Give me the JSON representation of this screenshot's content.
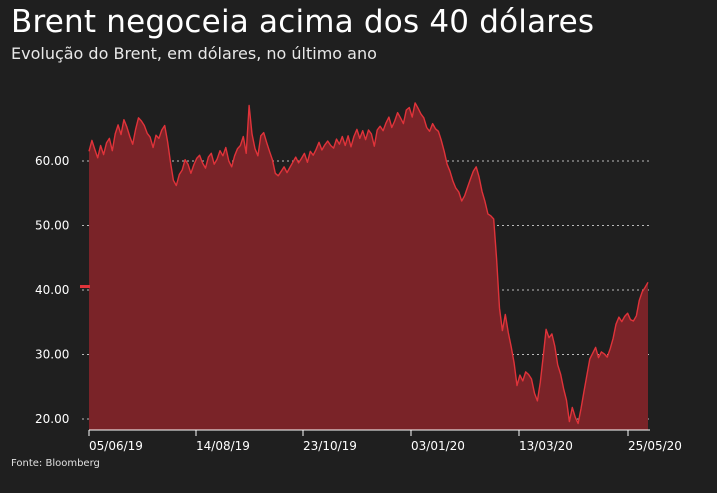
{
  "header": {
    "title": "Brent negoceia acima dos 40 dólares",
    "subtitle": "Evolução do Brent, em dólares, no último ano"
  },
  "footer": {
    "source": "Fonte: Bloomberg"
  },
  "colors": {
    "background": "#1f1f1f",
    "area_fill": "#7a2328",
    "line": "#e0333a",
    "grid": "#bbbbbb",
    "marker": "#e0333a"
  },
  "chart_data": {
    "type": "area",
    "title": "Brent negoceia acima dos 40 dólares",
    "subtitle": "Evolução do Brent, em dólares, no último ano",
    "xlabel": "",
    "ylabel": "",
    "ylim": [
      20,
      70
    ],
    "yticks": [
      "20.00",
      "30.00",
      "40.00",
      "50.00",
      "60.00"
    ],
    "ytick_values": [
      20,
      30,
      40,
      50,
      60
    ],
    "xticks": [
      "05/06/19",
      "14/08/19",
      "23/10/19",
      "03/01/20",
      "13/03/20",
      "25/05/20"
    ],
    "grid": true,
    "highlight_value": 40,
    "series": [
      {
        "values": [
          61.5,
          63.2,
          61.8,
          60.5,
          62.4,
          61.0,
          62.8,
          63.5,
          61.6,
          64.2,
          65.6,
          64.1,
          66.4,
          65.3,
          63.8,
          62.6,
          64.9,
          66.7,
          66.2,
          65.5,
          64.3,
          63.7,
          62.1,
          64.0,
          63.5,
          64.8,
          65.5,
          63.0,
          59.8,
          57.0,
          56.2,
          57.9,
          58.6,
          60.2,
          59.5,
          58.1,
          59.4,
          60.4,
          60.9,
          59.7,
          58.9,
          60.6,
          61.2,
          59.5,
          60.3,
          61.6,
          60.8,
          62.1,
          60.0,
          59.1,
          60.8,
          61.9,
          62.4,
          63.8,
          61.2,
          68.6,
          64.2,
          61.9,
          60.8,
          63.9,
          64.4,
          62.9,
          61.5,
          60.2,
          58.1,
          57.7,
          58.4,
          59.1,
          58.2,
          59.0,
          59.8,
          60.6,
          59.7,
          60.4,
          61.2,
          59.8,
          61.5,
          60.9,
          61.8,
          62.9,
          61.7,
          62.5,
          63.1,
          62.4,
          62.0,
          63.4,
          62.6,
          63.8,
          62.4,
          63.9,
          62.2,
          63.8,
          64.9,
          63.5,
          64.7,
          63.3,
          64.8,
          64.2,
          62.3,
          64.8,
          65.4,
          64.7,
          65.9,
          66.8,
          65.2,
          66.2,
          67.5,
          66.7,
          65.8,
          67.9,
          68.3,
          66.8,
          69.0,
          68.2,
          67.3,
          66.7,
          65.2,
          64.6,
          65.8,
          65.0,
          64.6,
          63.2,
          61.5,
          59.5,
          58.4,
          56.9,
          55.8,
          55.2,
          53.8,
          54.6,
          55.9,
          57.2,
          58.4,
          59.1,
          57.5,
          55.3,
          53.7,
          51.8,
          51.5,
          51.0,
          44.8,
          37.2,
          33.7,
          36.2,
          33.4,
          31.2,
          28.7,
          25.2,
          26.8,
          25.9,
          27.3,
          26.9,
          26.2,
          24.0,
          22.8,
          25.7,
          29.7,
          33.9,
          32.6,
          33.2,
          31.3,
          28.4,
          26.9,
          24.7,
          22.9,
          19.6,
          21.8,
          20.3,
          19.3,
          21.6,
          24.2,
          26.8,
          29.3,
          30.2,
          31.1,
          29.5,
          30.4,
          30.1,
          29.6,
          30.9,
          32.5,
          34.7,
          35.8,
          35.1,
          35.9,
          36.4,
          35.4,
          35.2,
          36.0,
          38.4,
          39.7,
          40.4,
          41.2
        ]
      }
    ]
  }
}
